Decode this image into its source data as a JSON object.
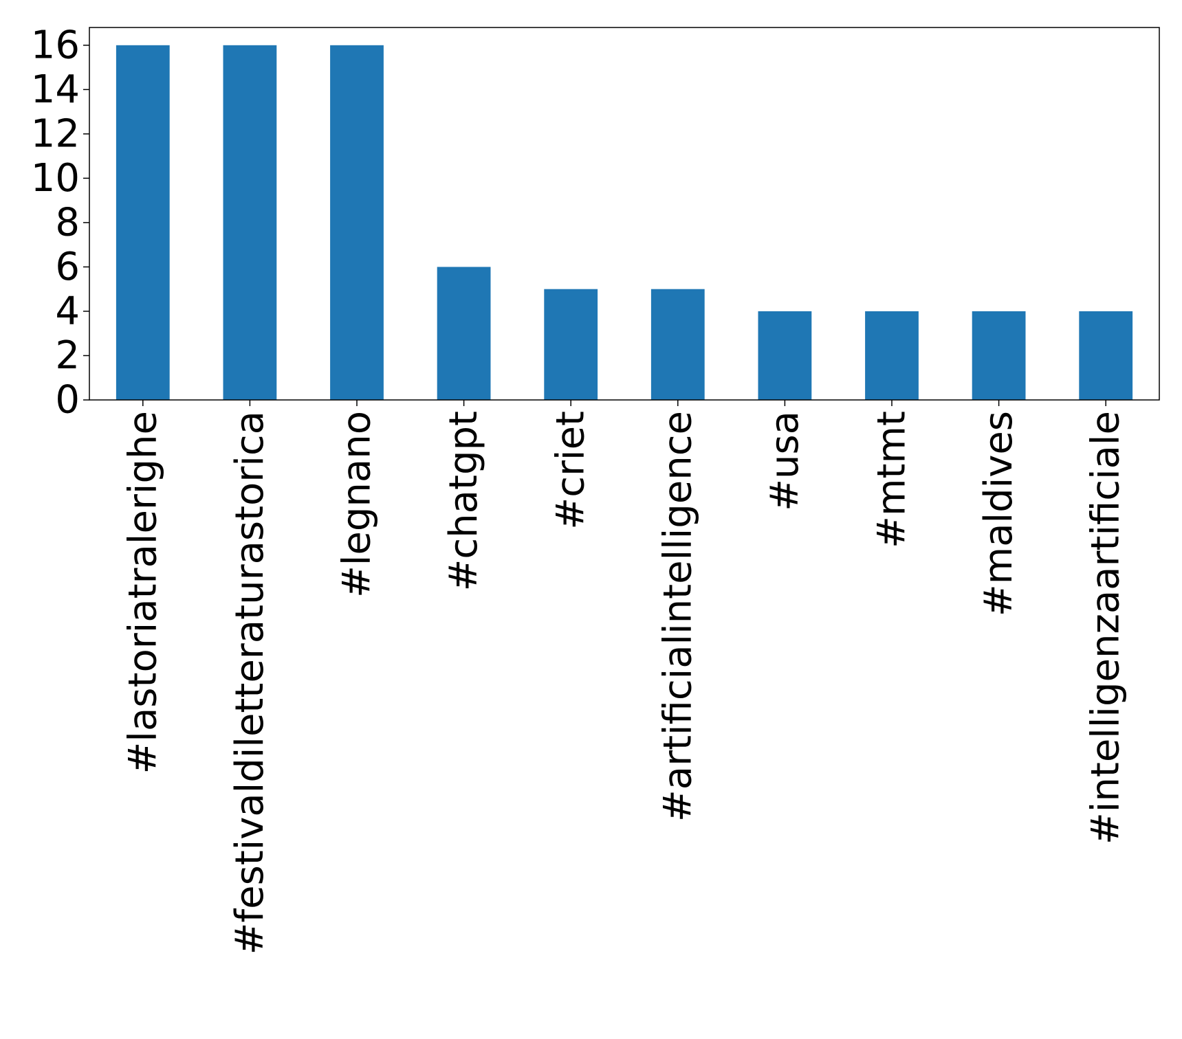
{
  "chart_data": {
    "type": "bar",
    "title": "",
    "xlabel": "",
    "ylabel": "",
    "categories": [
      "#lastoriatralerighe",
      "#festivaldiletteraturastorica",
      "#legnano",
      "#chatgpt",
      "#criet",
      "#artificialintelligence",
      "#usa",
      "#mtmt",
      "#maldives",
      "#intelligenzaartificiale"
    ],
    "values": [
      16,
      16,
      16,
      6,
      5,
      5,
      4,
      4,
      4,
      4
    ],
    "ylim": [
      0,
      16.8
    ],
    "yticks": [
      0,
      2,
      4,
      6,
      8,
      10,
      12,
      14,
      16
    ],
    "grid": false,
    "legend": "none",
    "bar_color": "#1f77b4",
    "x_tick_rotation": "vertical"
  }
}
